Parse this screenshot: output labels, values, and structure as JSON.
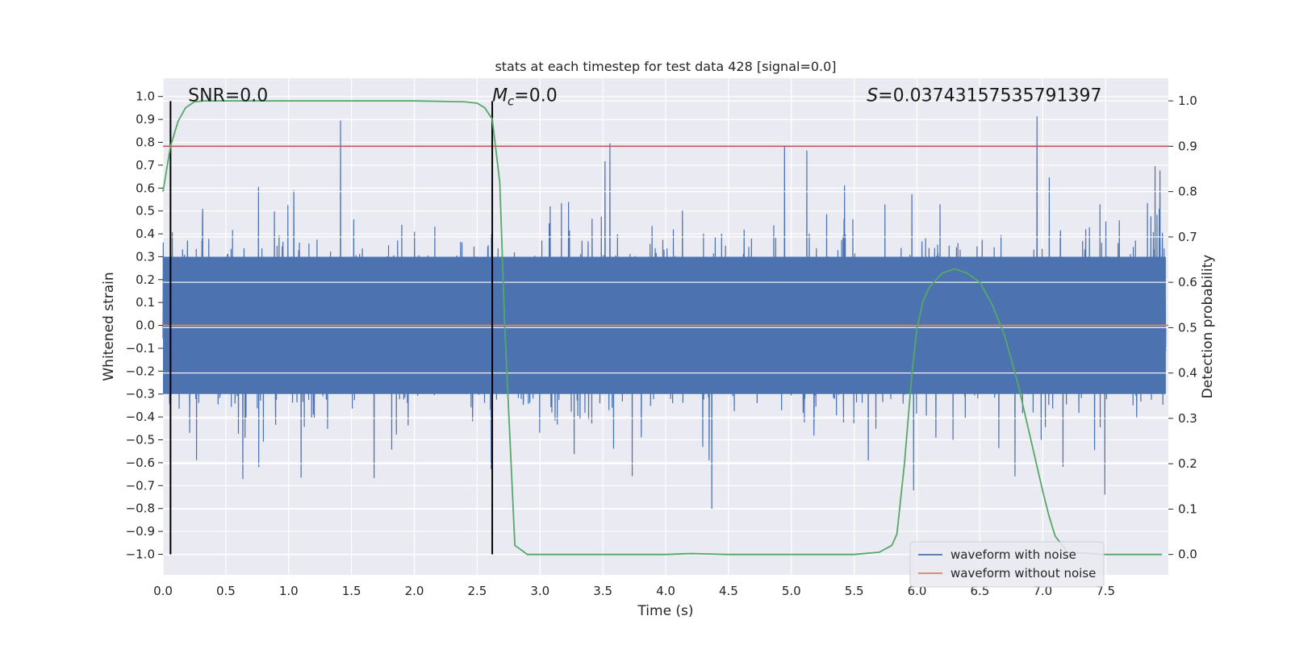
{
  "chart_data": {
    "type": "line",
    "title": "stats at each timestep for test data 428 [signal=0.0]",
    "xlabel": "Time (s)",
    "ylabel_left": "Whitened strain",
    "ylabel_right": "Detection probability",
    "xlim": [
      0.0,
      8.0
    ],
    "ylim_left": [
      -1.09,
      1.08
    ],
    "ylim_right": [
      -0.045,
      1.05
    ],
    "x_ticks": [
      "0.0",
      "0.5",
      "1.0",
      "1.5",
      "2.0",
      "2.5",
      "3.0",
      "3.5",
      "4.0",
      "4.5",
      "5.0",
      "5.5",
      "6.0",
      "6.5",
      "7.0",
      "7.5"
    ],
    "x_tick_values": [
      0,
      0.5,
      1,
      1.5,
      2,
      2.5,
      3,
      3.5,
      4,
      4.5,
      5,
      5.5,
      6,
      6.5,
      7,
      7.5
    ],
    "y_left_ticks": [
      "1.0",
      "0.9",
      "0.8",
      "0.7",
      "0.6",
      "0.5",
      "0.4",
      "0.3",
      "0.2",
      "0.1",
      "0.0",
      "−0.1",
      "−0.2",
      "−0.3",
      "−0.4",
      "−0.5",
      "−0.6",
      "−0.7",
      "−0.8",
      "−0.9",
      "−1.0"
    ],
    "y_left_tick_values": [
      1,
      0.9,
      0.8,
      0.7,
      0.6,
      0.5,
      0.4,
      0.3,
      0.2,
      0.1,
      0,
      -0.1,
      -0.2,
      -0.3,
      -0.4,
      -0.5,
      -0.6,
      -0.7,
      -0.8,
      -0.9,
      -1.0
    ],
    "y_right_ticks": [
      "1.0",
      "0.9",
      "0.8",
      "0.7",
      "0.6",
      "0.5",
      "0.4",
      "0.3",
      "0.2",
      "0.1",
      "0.0"
    ],
    "y_right_tick_values": [
      1,
      0.9,
      0.8,
      0.7,
      0.6,
      0.5,
      0.4,
      0.3,
      0.2,
      0.1,
      0
    ],
    "annotations": [
      {
        "text": "SNR=0.0",
        "x": 0.2,
        "y": 1.0
      },
      {
        "text": "=0.0",
        "prefix_italic": "M",
        "subscript": "c",
        "x": 2.62,
        "y": 1.0
      },
      {
        "text": "=0.03743157535791397",
        "prefix_italic": "S",
        "x": 5.6,
        "y": 1.0
      }
    ],
    "vlines": [
      {
        "x": 0.06,
        "ymin": -1.0,
        "ymax": 0.98
      },
      {
        "x": 2.62,
        "ymin": -1.0,
        "ymax": 0.98
      }
    ],
    "threshold_line": {
      "y_right": 0.9,
      "color": "#c44e52"
    },
    "series": [
      {
        "name": "waveform with noise",
        "color": "#4c72b0",
        "axis": "left",
        "style": "noise",
        "amplitude": 0.42,
        "n_samples": 4096
      },
      {
        "name": "waveform without noise",
        "color": "#dd8452",
        "axis": "left",
        "x": [
          0,
          8.0
        ],
        "y": [
          0,
          0
        ]
      },
      {
        "name": "detection probability",
        "color": "#55a868",
        "axis": "right",
        "x": [
          0.0,
          0.06,
          0.12,
          0.18,
          0.25,
          0.32,
          0.4,
          0.6,
          1.0,
          1.5,
          2.0,
          2.4,
          2.5,
          2.56,
          2.62,
          2.68,
          2.72,
          2.8,
          2.9,
          3.0,
          3.5,
          4.0,
          4.2,
          4.5,
          5.0,
          5.5,
          5.7,
          5.8,
          5.84,
          5.9,
          5.96,
          6.0,
          6.05,
          6.1,
          6.2,
          6.3,
          6.4,
          6.5,
          6.6,
          6.7,
          6.8,
          6.9,
          7.0,
          7.05,
          7.1,
          7.2,
          7.5,
          7.95
        ],
        "y": [
          0.8,
          0.9,
          0.955,
          0.985,
          0.998,
          1.0,
          1.0,
          1.0,
          1.0,
          1.0,
          1.0,
          0.998,
          0.995,
          0.985,
          0.96,
          0.82,
          0.5,
          0.02,
          0.0,
          0.0,
          0.0,
          0.0,
          0.002,
          0.0,
          0.0,
          0.0,
          0.005,
          0.02,
          0.045,
          0.2,
          0.4,
          0.5,
          0.56,
          0.59,
          0.62,
          0.63,
          0.62,
          0.6,
          0.55,
          0.48,
          0.38,
          0.26,
          0.14,
          0.085,
          0.04,
          0.005,
          0.0,
          0.0
        ]
      }
    ],
    "legend": {
      "location": "lower-right",
      "entries": [
        "waveform with noise",
        "waveform without noise"
      ]
    },
    "grid": true
  }
}
